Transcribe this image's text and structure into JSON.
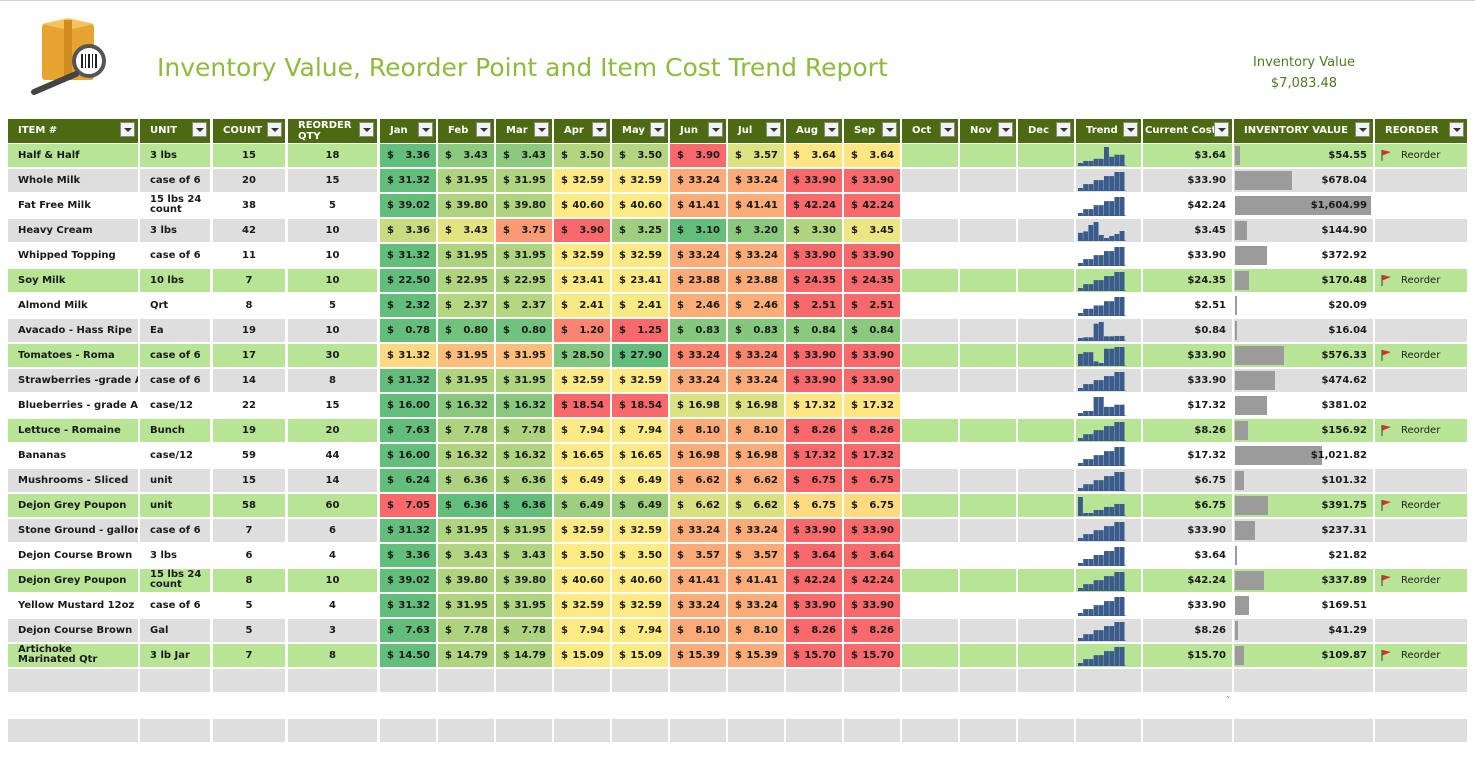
{
  "report": {
    "title": "Inventory Value, Reorder Point and Item Cost Trend Report",
    "inventory_value_label": "Inventory Value",
    "inventory_value": "$7,083.48",
    "logo_icon": "inventory-box-barcode-magnifier-icon",
    "reorder_flag_icon": "red-flag-icon"
  },
  "colors": {
    "header_bg": "#4c6a12",
    "title": "#8dbb3e",
    "row_green": "#b8e496",
    "row_gray": "#dedede",
    "row_white": "#ffffff",
    "bar": "#9b9b9b",
    "spark": "#3a5b8c",
    "scale": [
      "#63be7b",
      "#ffeb84",
      "#f8696b"
    ]
  },
  "columns": {
    "item": "ITEM #",
    "unit": "UNIT",
    "count": "COUNT",
    "reorder_qty": "REORDER QTY",
    "months": [
      "Jan",
      "Feb",
      "Mar",
      "Apr",
      "May",
      "Jun",
      "Jul",
      "Aug",
      "Sep",
      "Oct",
      "Nov",
      "Dec"
    ],
    "trend": "Trend",
    "current_cost": "Current Cost",
    "inventory_value": "INVENTORY VALUE",
    "reorder": "REORDER"
  },
  "rows": [
    {
      "item": "Half & Half",
      "unit": "3 lbs",
      "count": "15",
      "reorder_qty": "18",
      "prices": [
        "3.36",
        "3.43",
        "3.43",
        "3.50",
        "3.50",
        "3.90",
        "3.57",
        "3.64",
        "3.64"
      ],
      "current_cost": "$3.64",
      "inventory_value": "$54.55",
      "reorder": "Reorder"
    },
    {
      "item": "Whole Milk",
      "unit": "case of 6",
      "count": "20",
      "reorder_qty": "15",
      "prices": [
        "31.32",
        "31.95",
        "31.95",
        "32.59",
        "32.59",
        "33.24",
        "33.24",
        "33.90",
        "33.90"
      ],
      "current_cost": "$33.90",
      "inventory_value": "$678.04",
      "reorder": ""
    },
    {
      "item": "Fat Free Milk",
      "unit": "15 lbs 24 count",
      "count": "38",
      "reorder_qty": "5",
      "prices": [
        "39.02",
        "39.80",
        "39.80",
        "40.60",
        "40.60",
        "41.41",
        "41.41",
        "42.24",
        "42.24"
      ],
      "current_cost": "$42.24",
      "inventory_value": "$1,604.99",
      "reorder": ""
    },
    {
      "item": "Heavy Cream",
      "unit": "3 lbs",
      "count": "42",
      "reorder_qty": "10",
      "prices": [
        "3.36",
        "3.43",
        "3.75",
        "3.90",
        "3.25",
        "3.10",
        "3.20",
        "3.30",
        "3.45"
      ],
      "current_cost": "$3.45",
      "inventory_value": "$144.90",
      "reorder": ""
    },
    {
      "item": "Whipped Topping",
      "unit": "case of 6",
      "count": "11",
      "reorder_qty": "10",
      "prices": [
        "31.32",
        "31.95",
        "31.95",
        "32.59",
        "32.59",
        "33.24",
        "33.24",
        "33.90",
        "33.90"
      ],
      "current_cost": "$33.90",
      "inventory_value": "$372.92",
      "reorder": ""
    },
    {
      "item": "Soy Milk",
      "unit": "10 lbs",
      "count": "7",
      "reorder_qty": "10",
      "prices": [
        "22.50",
        "22.95",
        "22.95",
        "23.41",
        "23.41",
        "23.88",
        "23.88",
        "24.35",
        "24.35"
      ],
      "current_cost": "$24.35",
      "inventory_value": "$170.48",
      "reorder": "Reorder"
    },
    {
      "item": "Almond Milk",
      "unit": "Qrt",
      "count": "8",
      "reorder_qty": "5",
      "prices": [
        "2.32",
        "2.37",
        "2.37",
        "2.41",
        "2.41",
        "2.46",
        "2.46",
        "2.51",
        "2.51"
      ],
      "current_cost": "$2.51",
      "inventory_value": "$20.09",
      "reorder": ""
    },
    {
      "item": "Avacado - Hass Ripe",
      "unit": "Ea",
      "count": "19",
      "reorder_qty": "10",
      "prices": [
        "0.78",
        "0.80",
        "0.80",
        "1.20",
        "1.25",
        "0.83",
        "0.83",
        "0.84",
        "0.84"
      ],
      "current_cost": "$0.84",
      "inventory_value": "$16.04",
      "reorder": ""
    },
    {
      "item": "Tomatoes - Roma",
      "unit": "case of 6",
      "count": "17",
      "reorder_qty": "30",
      "prices": [
        "31.32",
        "31.95",
        "31.95",
        "28.50",
        "27.90",
        "33.24",
        "33.24",
        "33.90",
        "33.90"
      ],
      "current_cost": "$33.90",
      "inventory_value": "$576.33",
      "reorder": "Reorder"
    },
    {
      "item": "Strawberries -grade A",
      "unit": "case of 6",
      "count": "14",
      "reorder_qty": "8",
      "prices": [
        "31.32",
        "31.95",
        "31.95",
        "32.59",
        "32.59",
        "33.24",
        "33.24",
        "33.90",
        "33.90"
      ],
      "current_cost": "$33.90",
      "inventory_value": "$474.62",
      "reorder": ""
    },
    {
      "item": "Blueberries - grade A",
      "unit": "case/12",
      "count": "22",
      "reorder_qty": "15",
      "prices": [
        "16.00",
        "16.32",
        "16.32",
        "18.54",
        "18.54",
        "16.98",
        "16.98",
        "17.32",
        "17.32"
      ],
      "current_cost": "$17.32",
      "inventory_value": "$381.02",
      "reorder": ""
    },
    {
      "item": "Lettuce - Romaine",
      "unit": "Bunch",
      "count": "19",
      "reorder_qty": "20",
      "prices": [
        "7.63",
        "7.78",
        "7.78",
        "7.94",
        "7.94",
        "8.10",
        "8.10",
        "8.26",
        "8.26"
      ],
      "current_cost": "$8.26",
      "inventory_value": "$156.92",
      "reorder": "Reorder"
    },
    {
      "item": "Bananas",
      "unit": "case/12",
      "count": "59",
      "reorder_qty": "44",
      "prices": [
        "16.00",
        "16.32",
        "16.32",
        "16.65",
        "16.65",
        "16.98",
        "16.98",
        "17.32",
        "17.32"
      ],
      "current_cost": "$17.32",
      "inventory_value": "$1,021.82",
      "reorder": ""
    },
    {
      "item": "Mushrooms - Sliced",
      "unit": "unit",
      "count": "15",
      "reorder_qty": "14",
      "prices": [
        "6.24",
        "6.36",
        "6.36",
        "6.49",
        "6.49",
        "6.62",
        "6.62",
        "6.75",
        "6.75"
      ],
      "current_cost": "$6.75",
      "inventory_value": "$101.32",
      "reorder": ""
    },
    {
      "item": "Dejon Grey Poupon",
      "unit": "unit",
      "count": "58",
      "reorder_qty": "60",
      "prices": [
        "7.05",
        "6.36",
        "6.36",
        "6.49",
        "6.49",
        "6.62",
        "6.62",
        "6.75",
        "6.75"
      ],
      "current_cost": "$6.75",
      "inventory_value": "$391.75",
      "reorder": "Reorder"
    },
    {
      "item": "Stone Ground - gallon",
      "unit": "case of 6",
      "count": "7",
      "reorder_qty": "6",
      "prices": [
        "31.32",
        "31.95",
        "31.95",
        "32.59",
        "32.59",
        "33.24",
        "33.24",
        "33.90",
        "33.90"
      ],
      "current_cost": "$33.90",
      "inventory_value": "$237.31",
      "reorder": ""
    },
    {
      "item": "Dejon Course Brown",
      "unit": "3 lbs",
      "count": "6",
      "reorder_qty": "4",
      "prices": [
        "3.36",
        "3.43",
        "3.43",
        "3.50",
        "3.50",
        "3.57",
        "3.57",
        "3.64",
        "3.64"
      ],
      "current_cost": "$3.64",
      "inventory_value": "$21.82",
      "reorder": ""
    },
    {
      "item": "Dejon Grey Poupon",
      "unit": "15 lbs 24 count",
      "count": "8",
      "reorder_qty": "10",
      "prices": [
        "39.02",
        "39.80",
        "39.80",
        "40.60",
        "40.60",
        "41.41",
        "41.41",
        "42.24",
        "42.24"
      ],
      "current_cost": "$42.24",
      "inventory_value": "$337.89",
      "reorder": "Reorder"
    },
    {
      "item": "Yellow Mustard 12oz",
      "unit": "case of 6",
      "count": "5",
      "reorder_qty": "4",
      "prices": [
        "31.32",
        "31.95",
        "31.95",
        "32.59",
        "32.59",
        "33.24",
        "33.24",
        "33.90",
        "33.90"
      ],
      "current_cost": "$33.90",
      "inventory_value": "$169.51",
      "reorder": ""
    },
    {
      "item": "Dejon Course Brown",
      "unit": "Gal",
      "count": "5",
      "reorder_qty": "3",
      "prices": [
        "7.63",
        "7.78",
        "7.78",
        "7.94",
        "7.94",
        "8.10",
        "8.10",
        "8.26",
        "8.26"
      ],
      "current_cost": "$8.26",
      "inventory_value": "$41.29",
      "reorder": ""
    },
    {
      "item": "Artichoke Marinated Qtr",
      "unit": "3 lb Jar",
      "count": "7",
      "reorder_qty": "8",
      "prices": [
        "14.50",
        "14.79",
        "14.79",
        "15.09",
        "15.09",
        "15.39",
        "15.39",
        "15.70",
        "15.70"
      ],
      "current_cost": "$15.70",
      "inventory_value": "$109.87",
      "reorder": "Reorder"
    }
  ],
  "currency_symbol": "$",
  "stray_mark": "`"
}
